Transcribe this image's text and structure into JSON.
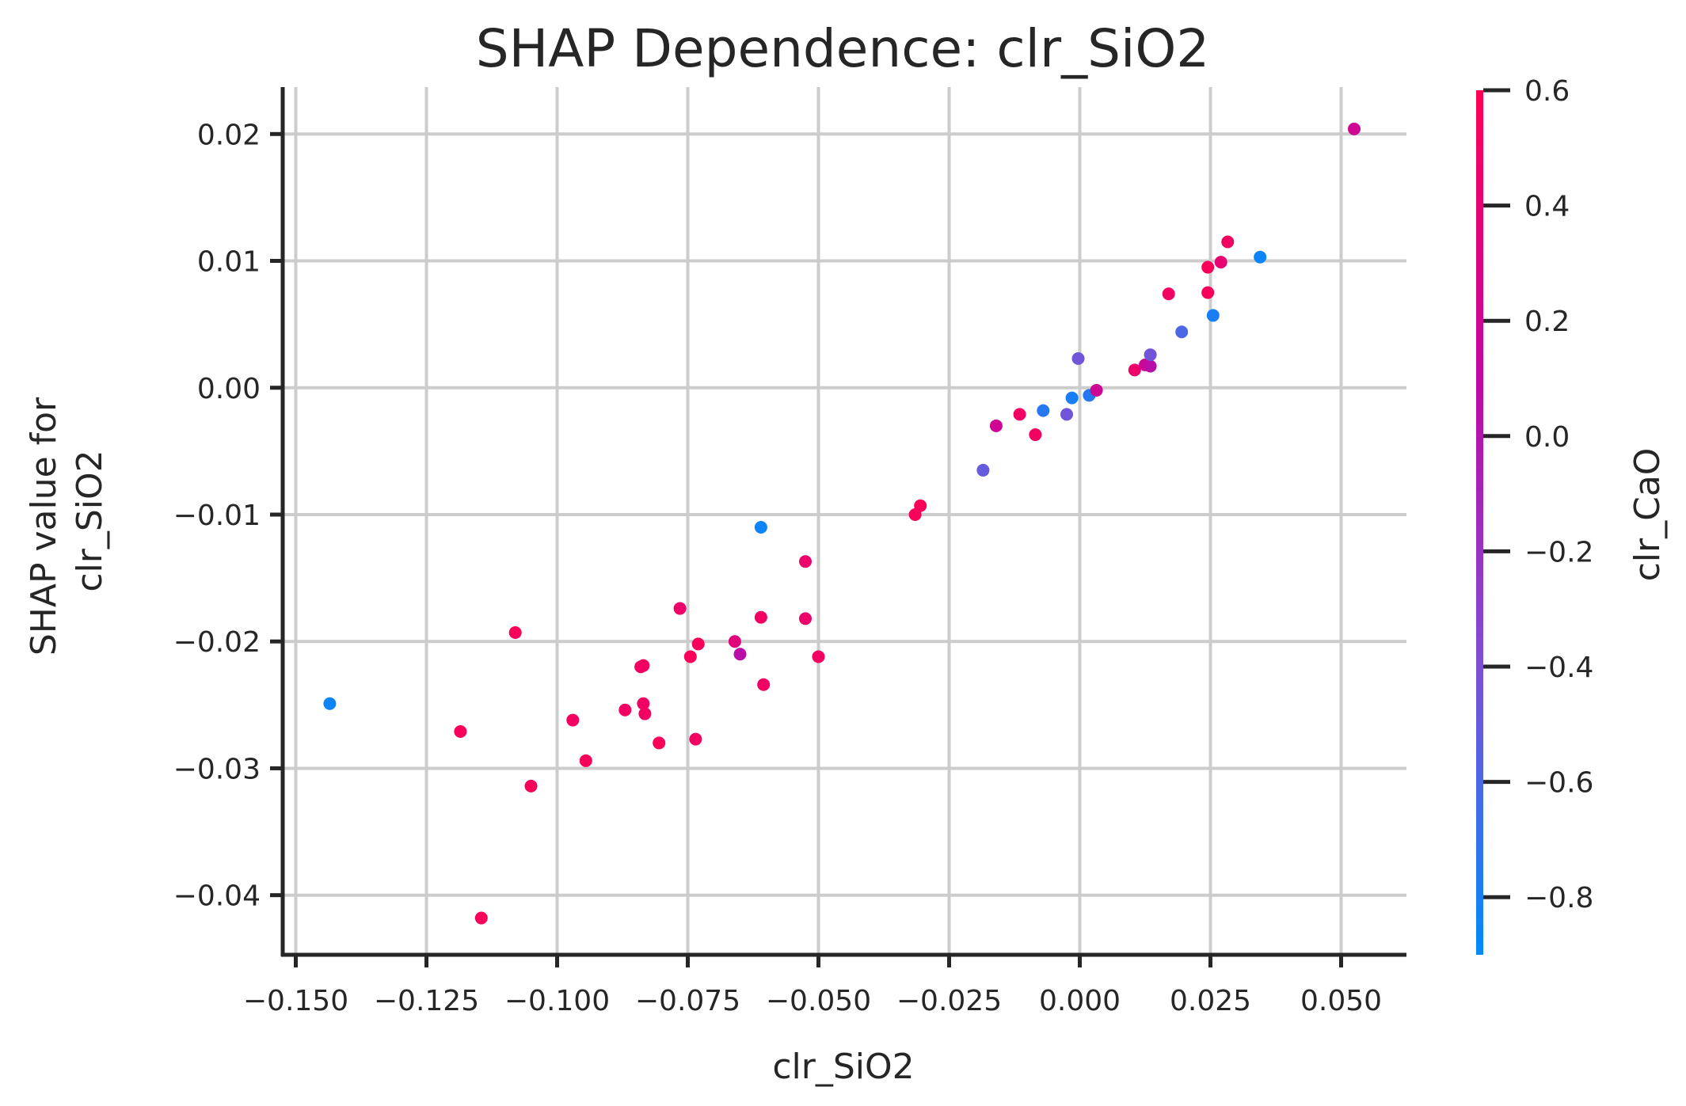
{
  "chart_data": {
    "type": "scatter",
    "title": "SHAP Dependence: clr_SiO2",
    "xlabel": "clr_SiO2",
    "ylabel_lines": [
      "SHAP value for",
      "clr_SiO2"
    ],
    "xlim": [
      -0.1525,
      0.0625
    ],
    "ylim": [
      -0.0447,
      0.0237
    ],
    "grid": true,
    "x_ticks": [
      -0.15,
      -0.125,
      -0.1,
      -0.075,
      -0.05,
      -0.025,
      0.0,
      0.025,
      0.05
    ],
    "x_tick_labels": [
      "−0.150",
      "−0.125",
      "−0.100",
      "−0.075",
      "−0.050",
      "−0.025",
      "0.000",
      "0.025",
      "0.050"
    ],
    "y_ticks": [
      0.02,
      0.01,
      0.0,
      -0.01,
      -0.02,
      -0.03,
      -0.04
    ],
    "y_tick_labels": [
      "0.02",
      "0.01",
      "0.00",
      "−0.01",
      "−0.02",
      "−0.03",
      "−0.04"
    ],
    "colorbar": {
      "label": "clr_CaO",
      "range": [
        -0.9,
        0.6
      ],
      "ticks": [
        0.6,
        0.4,
        0.2,
        0.0,
        -0.2,
        -0.4,
        -0.6,
        -0.8
      ],
      "tick_labels": [
        "0.6",
        "0.4",
        "0.2",
        "0.0",
        "−0.2",
        "−0.4",
        "−0.6",
        "−0.8"
      ],
      "colormap_stops": [
        "#008afb",
        "#7d4fd6",
        "#c107a3",
        "#ff0052"
      ]
    },
    "points": [
      {
        "x": -0.1435,
        "y": -0.0249,
        "c": -0.85
      },
      {
        "x": -0.1185,
        "y": -0.0271,
        "c": 0.55
      },
      {
        "x": -0.1145,
        "y": -0.0418,
        "c": 0.55
      },
      {
        "x": -0.108,
        "y": -0.0193,
        "c": 0.55
      },
      {
        "x": -0.105,
        "y": -0.0314,
        "c": 0.55
      },
      {
        "x": -0.097,
        "y": -0.0262,
        "c": 0.5
      },
      {
        "x": -0.0945,
        "y": -0.0294,
        "c": 0.55
      },
      {
        "x": -0.087,
        "y": -0.0254,
        "c": 0.5
      },
      {
        "x": -0.084,
        "y": -0.022,
        "c": 0.5
      },
      {
        "x": -0.0835,
        "y": -0.0219,
        "c": 0.5
      },
      {
        "x": -0.0835,
        "y": -0.0249,
        "c": 0.5
      },
      {
        "x": -0.0832,
        "y": -0.0257,
        "c": 0.5
      },
      {
        "x": -0.0805,
        "y": -0.028,
        "c": 0.55
      },
      {
        "x": -0.0765,
        "y": -0.0174,
        "c": 0.45
      },
      {
        "x": -0.0745,
        "y": -0.0212,
        "c": 0.55
      },
      {
        "x": -0.0735,
        "y": -0.0277,
        "c": 0.5
      },
      {
        "x": -0.073,
        "y": -0.0202,
        "c": 0.55
      },
      {
        "x": -0.066,
        "y": -0.02,
        "c": 0.35
      },
      {
        "x": -0.065,
        "y": -0.021,
        "c": 0.05
      },
      {
        "x": -0.061,
        "y": -0.011,
        "c": -0.85
      },
      {
        "x": -0.061,
        "y": -0.0181,
        "c": 0.5
      },
      {
        "x": -0.0605,
        "y": -0.0234,
        "c": 0.5
      },
      {
        "x": -0.0525,
        "y": -0.0137,
        "c": 0.45
      },
      {
        "x": -0.0525,
        "y": -0.0182,
        "c": 0.45
      },
      {
        "x": -0.05,
        "y": -0.0212,
        "c": 0.5
      },
      {
        "x": -0.0315,
        "y": -0.01,
        "c": 0.55
      },
      {
        "x": -0.0305,
        "y": -0.0093,
        "c": 0.55
      },
      {
        "x": -0.0185,
        "y": -0.0065,
        "c": -0.5
      },
      {
        "x": -0.016,
        "y": -0.003,
        "c": 0.2
      },
      {
        "x": -0.0115,
        "y": -0.0021,
        "c": 0.5
      },
      {
        "x": -0.0085,
        "y": -0.0037,
        "c": 0.5
      },
      {
        "x": -0.007,
        "y": -0.0018,
        "c": -0.75
      },
      {
        "x": -0.0025,
        "y": -0.0021,
        "c": -0.45
      },
      {
        "x": -0.0015,
        "y": -0.0008,
        "c": -0.8
      },
      {
        "x": -0.0003,
        "y": 0.0023,
        "c": -0.45
      },
      {
        "x": 0.0018,
        "y": -0.0006,
        "c": -0.75
      },
      {
        "x": 0.0032,
        "y": -0.0002,
        "c": 0.2
      },
      {
        "x": 0.0105,
        "y": 0.0014,
        "c": 0.45
      },
      {
        "x": 0.0125,
        "y": 0.0018,
        "c": 0.2
      },
      {
        "x": 0.0135,
        "y": 0.0017,
        "c": 0.05
      },
      {
        "x": 0.0135,
        "y": 0.0026,
        "c": -0.45
      },
      {
        "x": 0.017,
        "y": 0.0074,
        "c": 0.5
      },
      {
        "x": 0.0195,
        "y": 0.0044,
        "c": -0.6
      },
      {
        "x": 0.0245,
        "y": 0.0095,
        "c": 0.55
      },
      {
        "x": 0.0245,
        "y": 0.0075,
        "c": 0.55
      },
      {
        "x": 0.0255,
        "y": 0.0057,
        "c": -0.8
      },
      {
        "x": 0.027,
        "y": 0.0099,
        "c": 0.4
      },
      {
        "x": 0.0283,
        "y": 0.0115,
        "c": 0.5
      },
      {
        "x": 0.0345,
        "y": 0.0103,
        "c": -0.85
      },
      {
        "x": 0.0525,
        "y": 0.0204,
        "c": 0.2
      }
    ]
  }
}
